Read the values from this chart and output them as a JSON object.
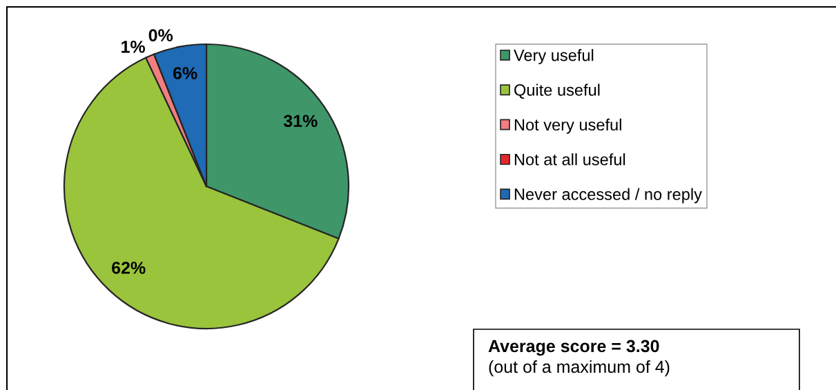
{
  "chart_data": {
    "type": "pie",
    "categories": [
      "Very useful",
      "Quite useful",
      "Not very useful",
      "Not at all useful",
      "Never accessed / no reply"
    ],
    "values": [
      31,
      62,
      1,
      0,
      6
    ],
    "colors": [
      "#3e9669",
      "#9ac43c",
      "#f27e80",
      "#e8262a",
      "#1f6bb5"
    ],
    "value_labels": [
      "31%",
      "62%",
      "1%",
      "0%",
      "6%"
    ],
    "legend": "top right",
    "annotations": [
      "Average score = 3.30",
      "(out of a maximum of 4)"
    ]
  }
}
